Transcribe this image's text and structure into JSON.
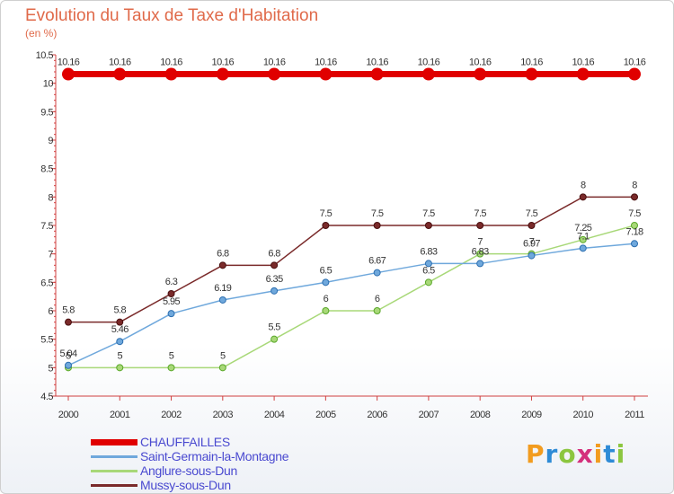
{
  "chart_data": {
    "type": "line",
    "title": "Evolution du Taux de Taxe d'Habitation",
    "subtitle": "(en %)",
    "xlabel": "",
    "ylabel": "",
    "categories": [
      "2000",
      "2001",
      "2002",
      "2003",
      "2004",
      "2005",
      "2006",
      "2007",
      "2008",
      "2009",
      "2010",
      "2011"
    ],
    "ylim": [
      4.5,
      10.5
    ],
    "yticks": [
      "4.5",
      "5",
      "5.5",
      "6",
      "6.5",
      "7",
      "7.5",
      "8",
      "8.5",
      "9",
      "9.5",
      "10",
      "10.5"
    ],
    "grid": false,
    "legend_position": "bottom-left",
    "series": [
      {
        "name": "CHAUFFAILLES",
        "color": "#e00000",
        "values": [
          10.16,
          10.16,
          10.16,
          10.16,
          10.16,
          10.16,
          10.16,
          10.16,
          10.16,
          10.16,
          10.16,
          10.16
        ],
        "labels": [
          "10.16",
          "10.16",
          "10.16",
          "10.16",
          "10.16",
          "10.16",
          "10.16",
          "10.16",
          "10.16",
          "10.16",
          "10.16",
          "10.16"
        ]
      },
      {
        "name": "Saint-Germain-la-Montagne",
        "color": "#6fa8dc",
        "values": [
          5.04,
          5.46,
          5.95,
          6.19,
          6.35,
          6.5,
          6.67,
          6.83,
          6.83,
          6.97,
          7.1,
          7.18
        ],
        "labels": [
          "5.04",
          "5.46",
          "5.95",
          "6.19",
          "6.35",
          "6.5",
          "6.67",
          "6.83",
          "6.83",
          "6.97",
          "7.1",
          "7.18"
        ]
      },
      {
        "name": "Anglure-sous-Dun",
        "color": "#a8d878",
        "values": [
          5,
          5,
          5,
          5,
          5.5,
          6,
          6,
          6.5,
          7,
          7,
          7.25,
          7.5
        ],
        "labels": [
          "5",
          "5",
          "5",
          "5",
          "5.5",
          "6",
          "6",
          "6.5",
          "7",
          "7",
          "7.25",
          "7.5"
        ]
      },
      {
        "name": "Mussy-sous-Dun",
        "color": "#7a2a2a",
        "values": [
          5.8,
          5.8,
          6.3,
          6.8,
          6.8,
          7.5,
          7.5,
          7.5,
          7.5,
          7.5,
          8,
          8
        ],
        "labels": [
          "5.8",
          "5.8",
          "6.3",
          "6.8",
          "6.8",
          "7.5",
          "7.5",
          "7.5",
          "7.5",
          "7.5",
          "8",
          "8"
        ]
      }
    ]
  },
  "logo": {
    "letters": [
      "P",
      "r",
      "o",
      "x",
      "i",
      "t",
      "i"
    ],
    "colors": [
      "#f29c1f",
      "#2e8bd6",
      "#8cc63f",
      "#d4307c",
      "#f29c1f",
      "#2e8bd6",
      "#8cc63f"
    ]
  }
}
